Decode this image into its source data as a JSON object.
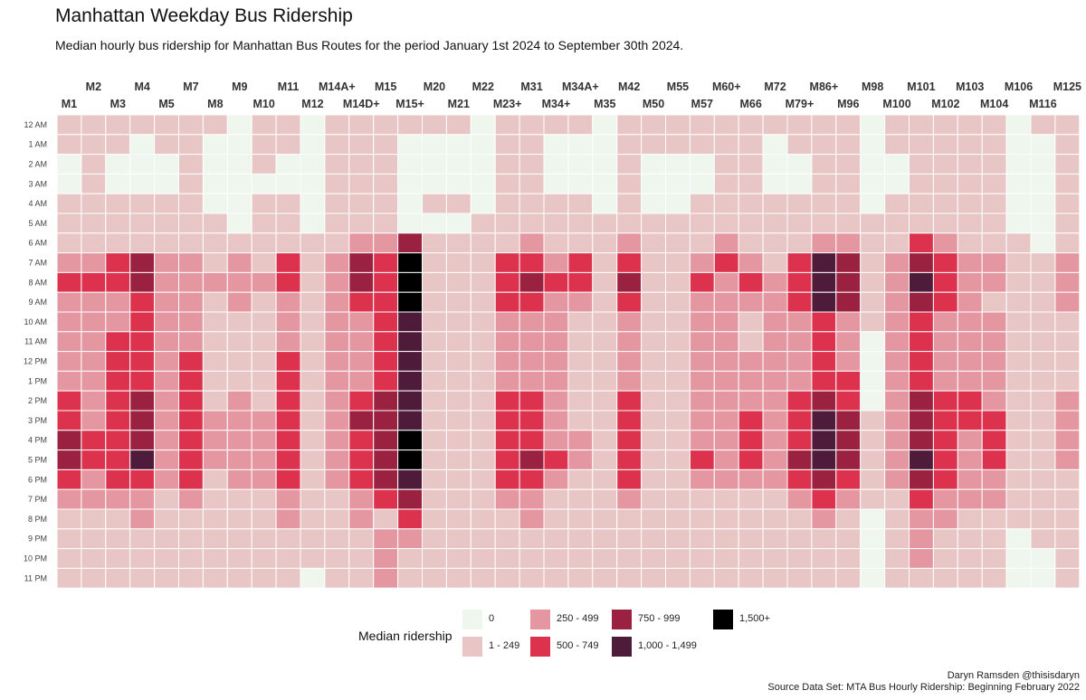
{
  "title": "Manhattan Weekday Bus Ridership",
  "subtitle": "Median hourly bus ridership for Manhattan Bus Routes for the period January 1st 2024 to September 30th 2024.",
  "caption": {
    "line1": "Daryn Ramsden @thisisdaryn",
    "line2": "Source Data Set: MTA Bus Hourly Ridership: Beginning February 2022"
  },
  "chart_data": {
    "type": "heatmap",
    "x_categories": [
      "M1",
      "M2",
      "M3",
      "M4",
      "M5",
      "M7",
      "M8",
      "M9",
      "M10",
      "M11",
      "M12",
      "M14A+",
      "M14D+",
      "M15",
      "M15+",
      "M20",
      "M21",
      "M22",
      "M23+",
      "M31",
      "M34+",
      "M34A+",
      "M35",
      "M42",
      "M50",
      "M55",
      "M57",
      "M60+",
      "M66",
      "M72",
      "M79+",
      "M86+",
      "M96",
      "M98",
      "M100",
      "M101",
      "M102",
      "M103",
      "M104",
      "M106",
      "M116",
      "M125"
    ],
    "y_categories": [
      "12 AM",
      "1 AM",
      "2 AM",
      "3 AM",
      "4 AM",
      "5 AM",
      "6 AM",
      "7 AM",
      "8 AM",
      "9 AM",
      "10 AM",
      "11 AM",
      "12 PM",
      "1 PM",
      "2 PM",
      "3 PM",
      "4 PM",
      "5 PM",
      "6 PM",
      "7 PM",
      "8 PM",
      "9 PM",
      "10 PM",
      "11 PM"
    ],
    "legend_title": "Median ridership",
    "bins": [
      {
        "label": "0",
        "color": "#eef6ee"
      },
      {
        "label": "1 - 249",
        "color": "#e8c6c6"
      },
      {
        "label": "250 - 499",
        "color": "#e497a0"
      },
      {
        "label": "500 - 749",
        "color": "#dc324e"
      },
      {
        "label": "750 - 999",
        "color": "#9a2140"
      },
      {
        "label": "1,000 - 1,499",
        "color": "#4e1b3a"
      },
      {
        "label": "1,500+",
        "color": "#000000"
      }
    ],
    "values_note": "rows = routes in x_categories order, each row = 24 hourly ridership bin indices (0-6), 12 AM to 11 PM",
    "bin_values": [
      [
        1,
        1,
        0,
        0,
        1,
        1,
        1,
        2,
        3,
        2,
        2,
        2,
        2,
        2,
        3,
        3,
        4,
        4,
        3,
        2,
        1,
        1,
        1,
        1
      ],
      [
        1,
        1,
        1,
        1,
        1,
        1,
        1,
        2,
        3,
        2,
        2,
        2,
        2,
        2,
        2,
        2,
        3,
        3,
        2,
        2,
        1,
        1,
        1,
        1
      ],
      [
        1,
        1,
        0,
        0,
        1,
        1,
        1,
        3,
        3,
        2,
        2,
        3,
        3,
        3,
        3,
        3,
        3,
        3,
        3,
        2,
        1,
        1,
        1,
        1
      ],
      [
        1,
        0,
        0,
        0,
        1,
        1,
        1,
        4,
        4,
        3,
        3,
        3,
        3,
        3,
        4,
        4,
        4,
        5,
        3,
        2,
        2,
        1,
        1,
        1
      ],
      [
        1,
        1,
        0,
        0,
        1,
        1,
        1,
        2,
        2,
        2,
        2,
        2,
        2,
        2,
        2,
        2,
        2,
        2,
        2,
        1,
        1,
        1,
        1,
        1
      ],
      [
        1,
        1,
        1,
        1,
        1,
        1,
        1,
        2,
        2,
        2,
        2,
        2,
        3,
        3,
        3,
        3,
        3,
        3,
        3,
        2,
        1,
        1,
        1,
        1
      ],
      [
        1,
        0,
        0,
        0,
        0,
        1,
        1,
        1,
        2,
        1,
        1,
        1,
        1,
        1,
        1,
        2,
        2,
        2,
        1,
        1,
        1,
        1,
        1,
        1
      ],
      [
        0,
        0,
        0,
        0,
        0,
        0,
        1,
        2,
        2,
        2,
        1,
        1,
        1,
        1,
        2,
        2,
        2,
        2,
        2,
        1,
        1,
        1,
        1,
        1
      ],
      [
        1,
        1,
        1,
        0,
        1,
        1,
        1,
        1,
        2,
        1,
        1,
        1,
        1,
        1,
        1,
        2,
        2,
        2,
        2,
        1,
        1,
        1,
        1,
        1
      ],
      [
        1,
        1,
        0,
        0,
        1,
        1,
        1,
        3,
        3,
        2,
        2,
        2,
        3,
        3,
        3,
        3,
        3,
        3,
        3,
        2,
        2,
        1,
        1,
        1
      ],
      [
        0,
        0,
        0,
        0,
        0,
        0,
        1,
        1,
        1,
        1,
        1,
        1,
        1,
        1,
        1,
        1,
        1,
        1,
        1,
        1,
        1,
        1,
        1,
        0
      ],
      [
        1,
        1,
        1,
        1,
        1,
        1,
        1,
        2,
        2,
        2,
        2,
        2,
        2,
        2,
        2,
        2,
        2,
        2,
        2,
        1,
        1,
        1,
        1,
        1
      ],
      [
        1,
        1,
        1,
        1,
        1,
        1,
        2,
        4,
        4,
        3,
        2,
        2,
        2,
        2,
        3,
        4,
        3,
        3,
        3,
        2,
        2,
        1,
        1,
        1
      ],
      [
        1,
        1,
        1,
        1,
        1,
        1,
        2,
        3,
        3,
        3,
        3,
        3,
        3,
        3,
        4,
        4,
        4,
        4,
        4,
        3,
        1,
        2,
        2,
        2
      ],
      [
        1,
        0,
        0,
        0,
        0,
        0,
        4,
        6,
        6,
        6,
        5,
        5,
        5,
        5,
        5,
        5,
        6,
        6,
        5,
        4,
        3,
        2,
        1,
        1
      ],
      [
        1,
        0,
        0,
        0,
        1,
        0,
        1,
        1,
        1,
        1,
        1,
        1,
        1,
        1,
        1,
        1,
        1,
        1,
        1,
        1,
        1,
        1,
        1,
        1
      ],
      [
        1,
        0,
        0,
        0,
        1,
        0,
        1,
        1,
        1,
        1,
        1,
        1,
        1,
        1,
        1,
        1,
        1,
        1,
        1,
        1,
        1,
        1,
        1,
        1
      ],
      [
        0,
        0,
        0,
        0,
        0,
        1,
        1,
        1,
        1,
        1,
        1,
        1,
        1,
        1,
        1,
        1,
        1,
        1,
        1,
        1,
        1,
        1,
        1,
        1
      ],
      [
        1,
        1,
        1,
        1,
        1,
        1,
        1,
        3,
        3,
        3,
        2,
        2,
        2,
        2,
        3,
        3,
        3,
        3,
        3,
        2,
        1,
        1,
        1,
        1
      ],
      [
        1,
        1,
        1,
        1,
        1,
        1,
        2,
        3,
        4,
        3,
        2,
        2,
        2,
        2,
        3,
        3,
        3,
        4,
        3,
        2,
        2,
        1,
        1,
        1
      ],
      [
        1,
        0,
        0,
        0,
        1,
        1,
        1,
        2,
        3,
        2,
        2,
        2,
        2,
        2,
        2,
        2,
        2,
        3,
        2,
        1,
        1,
        1,
        1,
        1
      ],
      [
        1,
        0,
        0,
        0,
        1,
        1,
        1,
        3,
        3,
        2,
        1,
        1,
        1,
        1,
        1,
        1,
        2,
        2,
        1,
        1,
        1,
        1,
        1,
        1
      ],
      [
        0,
        0,
        0,
        0,
        0,
        1,
        1,
        1,
        1,
        1,
        1,
        1,
        1,
        1,
        1,
        1,
        1,
        1,
        1,
        1,
        1,
        1,
        1,
        1
      ],
      [
        1,
        1,
        1,
        1,
        1,
        1,
        2,
        3,
        4,
        3,
        2,
        2,
        2,
        2,
        3,
        3,
        3,
        3,
        3,
        2,
        1,
        1,
        1,
        1
      ],
      [
        1,
        1,
        0,
        0,
        0,
        1,
        1,
        1,
        1,
        1,
        1,
        1,
        1,
        1,
        1,
        1,
        1,
        1,
        1,
        1,
        1,
        1,
        1,
        1
      ],
      [
        1,
        1,
        0,
        0,
        0,
        1,
        1,
        1,
        1,
        1,
        1,
        1,
        1,
        1,
        1,
        1,
        1,
        1,
        1,
        1,
        1,
        1,
        1,
        1
      ],
      [
        1,
        1,
        0,
        0,
        1,
        1,
        1,
        2,
        3,
        2,
        2,
        2,
        2,
        2,
        2,
        2,
        2,
        3,
        2,
        1,
        1,
        1,
        1,
        1
      ],
      [
        1,
        1,
        1,
        1,
        1,
        1,
        2,
        3,
        2,
        2,
        2,
        2,
        2,
        2,
        2,
        2,
        2,
        2,
        2,
        1,
        1,
        1,
        1,
        1
      ],
      [
        1,
        1,
        1,
        1,
        1,
        1,
        1,
        2,
        3,
        2,
        1,
        1,
        2,
        2,
        2,
        3,
        3,
        3,
        2,
        1,
        1,
        1,
        1,
        1
      ],
      [
        1,
        0,
        0,
        0,
        1,
        1,
        1,
        1,
        2,
        2,
        2,
        2,
        2,
        2,
        2,
        2,
        2,
        2,
        2,
        1,
        1,
        1,
        1,
        1
      ],
      [
        1,
        1,
        0,
        0,
        1,
        1,
        1,
        3,
        3,
        3,
        2,
        2,
        2,
        2,
        3,
        3,
        3,
        4,
        3,
        2,
        1,
        1,
        1,
        1
      ],
      [
        1,
        1,
        1,
        1,
        1,
        1,
        2,
        5,
        5,
        5,
        3,
        3,
        3,
        3,
        4,
        5,
        5,
        5,
        4,
        3,
        2,
        1,
        1,
        1
      ],
      [
        1,
        1,
        1,
        1,
        1,
        1,
        2,
        4,
        4,
        4,
        2,
        2,
        2,
        3,
        3,
        4,
        4,
        4,
        3,
        2,
        1,
        1,
        1,
        1
      ],
      [
        0,
        0,
        0,
        0,
        0,
        1,
        1,
        1,
        1,
        1,
        1,
        0,
        0,
        0,
        0,
        1,
        1,
        1,
        1,
        1,
        0,
        0,
        0,
        0
      ],
      [
        1,
        1,
        0,
        0,
        1,
        1,
        1,
        2,
        2,
        2,
        2,
        2,
        2,
        2,
        2,
        2,
        2,
        2,
        2,
        1,
        1,
        1,
        1,
        1
      ],
      [
        1,
        1,
        1,
        1,
        1,
        1,
        3,
        4,
        5,
        4,
        3,
        3,
        3,
        3,
        4,
        4,
        4,
        5,
        4,
        3,
        2,
        2,
        2,
        1
      ],
      [
        1,
        1,
        1,
        1,
        1,
        1,
        2,
        3,
        3,
        3,
        2,
        2,
        2,
        2,
        3,
        3,
        3,
        3,
        3,
        2,
        2,
        1,
        1,
        1
      ],
      [
        1,
        1,
        1,
        1,
        1,
        1,
        1,
        2,
        2,
        2,
        2,
        2,
        2,
        2,
        3,
        3,
        2,
        2,
        2,
        2,
        1,
        1,
        1,
        1
      ],
      [
        1,
        1,
        1,
        1,
        1,
        1,
        1,
        2,
        2,
        1,
        2,
        2,
        2,
        2,
        2,
        3,
        3,
        3,
        2,
        2,
        1,
        1,
        1,
        1
      ],
      [
        0,
        0,
        0,
        0,
        0,
        0,
        1,
        1,
        1,
        1,
        1,
        1,
        1,
        1,
        1,
        1,
        1,
        1,
        1,
        1,
        1,
        0,
        0,
        0
      ],
      [
        1,
        0,
        0,
        0,
        0,
        0,
        0,
        1,
        1,
        1,
        1,
        1,
        1,
        1,
        1,
        1,
        1,
        1,
        1,
        1,
        1,
        1,
        0,
        0
      ],
      [
        1,
        1,
        1,
        1,
        1,
        1,
        1,
        2,
        2,
        2,
        1,
        1,
        1,
        1,
        2,
        2,
        2,
        2,
        1,
        1,
        1,
        1,
        1,
        1
      ]
    ],
    "grid": true,
    "legend_position": "bottom"
  }
}
